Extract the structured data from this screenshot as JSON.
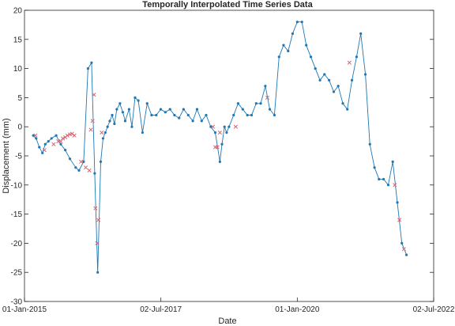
{
  "chart_data": {
    "type": "scatter",
    "title": "Temporally Interpolated Time Series Data",
    "xlabel": "Date",
    "ylabel": "Displacement (mm)",
    "xlim": [
      "2015-01-01",
      "2022-07-02"
    ],
    "ylim": [
      -30,
      20
    ],
    "xticks": [
      {
        "date": "2015-01-01",
        "label": "01-Jan-2015"
      },
      {
        "date": "2017-07-02",
        "label": "02-Jul-2017"
      },
      {
        "date": "2020-01-01",
        "label": "01-Jan-2020"
      },
      {
        "date": "2022-07-02",
        "label": "02-Jul-2022"
      }
    ],
    "yticks": [
      20,
      15,
      10,
      5,
      0,
      -5,
      -10,
      -15,
      -20,
      -25,
      -30
    ],
    "grid": false,
    "colors": {
      "line": "#1f77b4",
      "observed": "#1f77b4",
      "interpolated": "#e06070"
    },
    "series": [
      {
        "marker": "dot",
        "x": [
          "2015-03-01",
          "2015-03-20",
          "2015-04-10",
          "2015-05-01",
          "2015-05-20",
          "2015-06-10",
          "2015-07-01",
          "2015-08-01",
          "2015-09-01",
          "2015-10-01",
          "2015-11-01",
          "2015-12-10",
          "2016-01-01",
          "2016-02-01",
          "2016-03-01",
          "2016-03-25",
          "2016-04-15",
          "2016-05-05",
          "2016-05-25",
          "2016-06-10",
          "2016-06-25",
          "2016-07-10",
          "2016-07-25",
          "2016-08-10",
          "2016-08-25",
          "2016-09-10",
          "2016-10-01",
          "2016-10-20",
          "2016-11-05",
          "2016-12-01",
          "2016-12-20",
          "2017-01-10",
          "2017-02-01",
          "2017-03-01",
          "2017-04-01",
          "2017-05-01",
          "2017-06-01",
          "2017-07-01",
          "2017-08-01",
          "2017-09-01",
          "2017-10-01",
          "2017-11-01",
          "2017-12-01",
          "2018-01-01",
          "2018-02-01",
          "2018-03-01",
          "2018-04-01",
          "2018-05-01",
          "2018-06-01",
          "2018-07-01",
          "2018-08-01",
          "2018-08-15",
          "2018-09-01",
          "2018-09-15",
          "2018-10-01",
          "2018-11-01",
          "2018-12-01",
          "2019-01-01",
          "2019-02-01",
          "2019-03-01",
          "2019-04-01",
          "2019-05-01",
          "2019-06-01",
          "2019-07-01",
          "2019-08-01",
          "2019-09-01",
          "2019-10-01",
          "2019-11-01",
          "2019-12-01",
          "2020-01-01",
          "2020-02-01",
          "2020-03-01",
          "2020-04-01",
          "2020-05-01",
          "2020-06-01",
          "2020-07-01",
          "2020-08-01",
          "2020-09-01",
          "2020-10-01",
          "2020-11-01",
          "2020-12-01",
          "2021-01-01",
          "2021-02-01",
          "2021-03-01",
          "2021-04-01",
          "2021-05-01",
          "2021-06-01",
          "2021-07-01",
          "2021-08-01",
          "2021-09-01",
          "2021-10-01",
          "2021-11-01",
          "2021-12-01",
          "2022-01-01"
        ],
        "y": [
          -1.5,
          -2,
          -3.5,
          -4.5,
          -3,
          -2.5,
          -2,
          -1.5,
          -3,
          -4,
          -5.5,
          -7,
          -7.5,
          -6,
          10,
          11,
          -8,
          -25,
          -6,
          -2,
          -1,
          0,
          1,
          2,
          0.5,
          3,
          4,
          2.5,
          1,
          3,
          0,
          5,
          4.5,
          -1,
          4,
          2,
          2,
          3,
          2.5,
          3,
          2,
          1.5,
          3,
          2,
          1,
          3,
          1,
          2,
          0,
          -1,
          -6,
          -3,
          0,
          -1,
          0,
          2,
          4,
          3,
          2,
          2,
          4,
          4,
          7,
          3,
          2,
          12,
          14,
          13,
          16,
          18,
          18,
          14,
          12,
          10,
          8,
          9,
          8,
          6,
          7,
          4,
          3,
          8,
          12,
          16,
          9,
          -3,
          -7,
          -9,
          -9,
          -10,
          -6,
          -13,
          -20,
          -22
        ]
      },
      {
        "marker": "x",
        "x": [
          "2015-03-15",
          "2015-05-15",
          "2015-07-15",
          "2015-08-15",
          "2015-09-01",
          "2015-09-15",
          "2015-10-01",
          "2015-10-15",
          "2015-11-01",
          "2015-11-15",
          "2015-12-01",
          "2016-01-15",
          "2016-02-15",
          "2016-03-10",
          "2016-03-20",
          "2016-04-01",
          "2016-04-10",
          "2016-04-20",
          "2016-05-01",
          "2016-05-10",
          "2016-06-01",
          "2018-06-15",
          "2018-07-01",
          "2018-07-15",
          "2018-08-01",
          "2018-11-15",
          "2019-06-15",
          "2020-12-15",
          "2021-10-15",
          "2021-11-15",
          "2021-12-15"
        ],
        "y": [
          -1.5,
          -4,
          -3,
          -2.5,
          -2.5,
          -2,
          -1.8,
          -1.5,
          -1.3,
          -1.2,
          -1.5,
          -6,
          -7,
          -7.5,
          -0.5,
          1,
          5.5,
          -14,
          -20,
          -16,
          -1,
          0,
          -3.5,
          -3.5,
          -1,
          0,
          5,
          11,
          -10,
          -16,
          -21
        ]
      }
    ]
  }
}
